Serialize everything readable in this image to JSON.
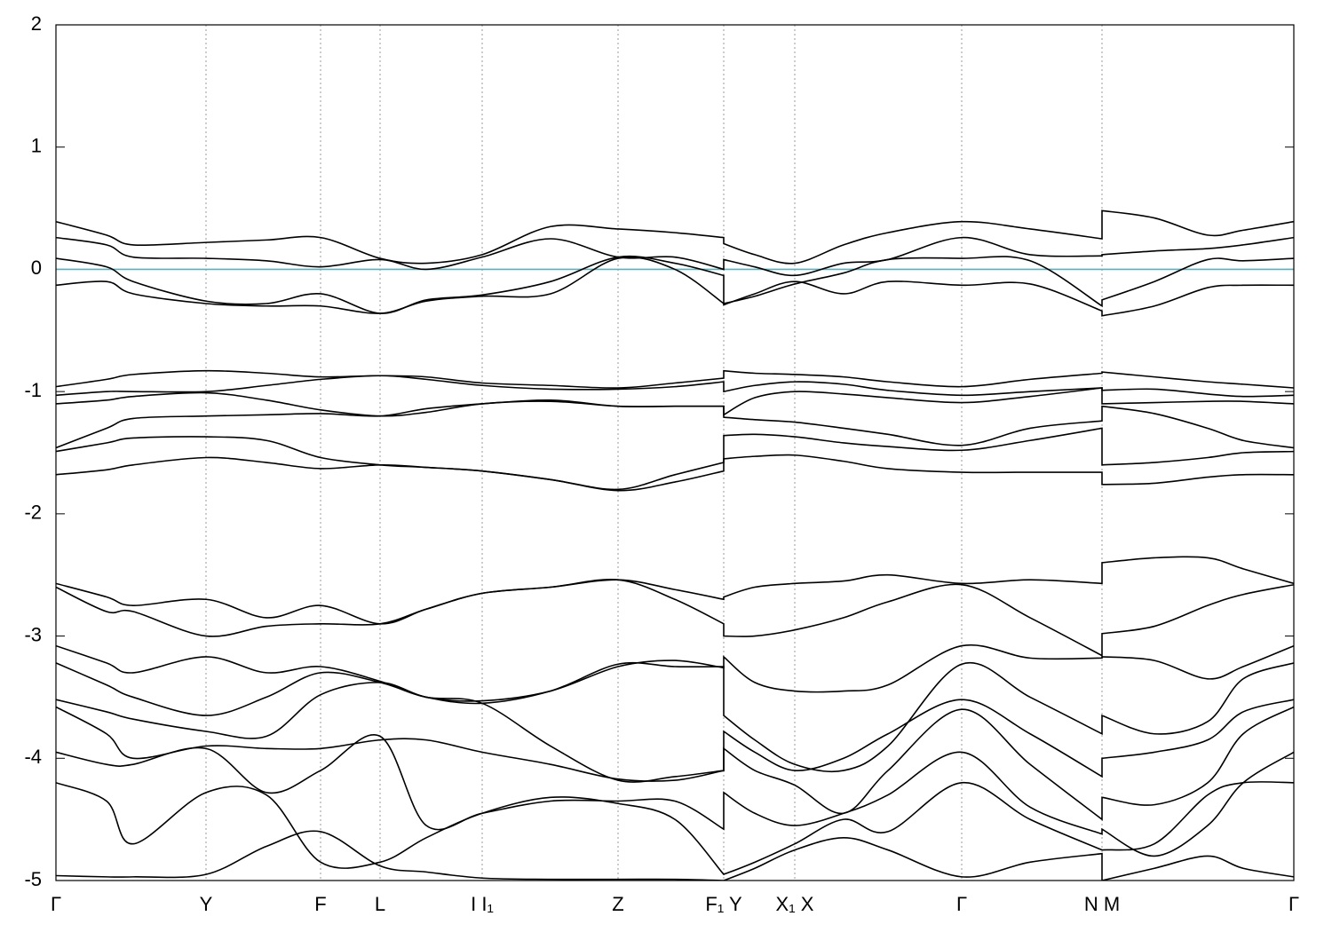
{
  "chart_data": {
    "type": "line",
    "xlim": [
      0,
      1394
    ],
    "ylim": [
      -5,
      2
    ],
    "yticks": [
      -5,
      -4,
      -3,
      -2,
      -1,
      0,
      1,
      2
    ],
    "xticks": [
      {
        "value": 0,
        "label": "Γ"
      },
      {
        "value": 169,
        "label": "Y"
      },
      {
        "value": 298,
        "label": "F"
      },
      {
        "value": 365,
        "label": "L"
      },
      {
        "value": 480,
        "label": "I   I₁"
      },
      {
        "value": 633,
        "label": "Z"
      },
      {
        "value": 752,
        "label": "F₁ Y"
      },
      {
        "value": 832,
        "label": "X₁ X"
      },
      {
        "value": 1020,
        "label": "Γ"
      },
      {
        "value": 1178,
        "label": "N M"
      },
      {
        "value": 1394,
        "label": "Γ"
      }
    ],
    "grid": true,
    "fermi_level": 0,
    "fermi_color": "#4ab6c8",
    "x": [
      0,
      57,
      87,
      169,
      237,
      298,
      365,
      417,
      480,
      557,
      633,
      697,
      752,
      752,
      787,
      832,
      887,
      937,
      1020,
      1097,
      1178,
      1178,
      1237,
      1297,
      1337,
      1394
    ],
    "series": [
      {
        "color": "#000000",
        "values": [
          0.39,
          0.28,
          0.2,
          0.22,
          0.24,
          0.26,
          0.09,
          0.05,
          0.12,
          0.35,
          0.33,
          0.3,
          0.26,
          0.21,
          0.12,
          0.05,
          0.2,
          0.3,
          0.39,
          0.33,
          0.25,
          0.48,
          0.42,
          0.28,
          0.32,
          0.39
        ]
      },
      {
        "color": "#000000",
        "values": [
          0.26,
          0.2,
          0.1,
          0.09,
          0.07,
          0.02,
          0.08,
          0.0,
          0.1,
          0.25,
          0.1,
          0.1,
          0.0,
          0.08,
          0.02,
          -0.05,
          0.05,
          0.08,
          0.26,
          0.12,
          0.11,
          0.12,
          0.15,
          0.17,
          0.2,
          0.26
        ]
      },
      {
        "color": "#000000",
        "values": [
          0.09,
          0.02,
          -0.1,
          -0.26,
          -0.28,
          -0.2,
          -0.36,
          -0.25,
          -0.21,
          -0.1,
          0.1,
          0.05,
          -0.05,
          -0.28,
          -0.22,
          -0.12,
          -0.03,
          0.08,
          0.09,
          0.07,
          -0.3,
          -0.25,
          -0.1,
          0.08,
          0.07,
          0.09
        ]
      },
      {
        "color": "#000000",
        "values": [
          -0.13,
          -0.1,
          -0.2,
          -0.28,
          -0.3,
          -0.3,
          -0.36,
          -0.26,
          -0.22,
          -0.2,
          0.09,
          0.0,
          -0.28,
          -0.29,
          -0.2,
          -0.1,
          -0.2,
          -0.1,
          -0.13,
          -0.12,
          -0.34,
          -0.38,
          -0.3,
          -0.15,
          -0.13,
          -0.13
        ]
      },
      {
        "color": "#000000",
        "values": [
          -0.96,
          -0.9,
          -0.86,
          -0.83,
          -0.85,
          -0.88,
          -0.87,
          -0.88,
          -0.93,
          -0.95,
          -0.97,
          -0.93,
          -0.89,
          -0.83,
          -0.85,
          -0.86,
          -0.88,
          -0.92,
          -0.96,
          -0.9,
          -0.85,
          -0.84,
          -0.88,
          -0.92,
          -0.94,
          -0.97
        ]
      },
      {
        "color": "#000000",
        "values": [
          -1.03,
          -1.0,
          -1.0,
          -1.0,
          -0.95,
          -0.9,
          -0.87,
          -0.9,
          -0.95,
          -0.98,
          -0.98,
          -0.96,
          -0.92,
          -1.0,
          -0.95,
          -0.92,
          -0.94,
          -0.99,
          -1.03,
          -1.0,
          -0.97,
          -0.99,
          -0.98,
          -1.02,
          -1.04,
          -1.03
        ]
      },
      {
        "color": "#000000",
        "values": [
          -1.1,
          -1.07,
          -1.04,
          -1.01,
          -1.07,
          -1.15,
          -1.2,
          -1.17,
          -1.1,
          -1.08,
          -1.12,
          -1.12,
          -1.12,
          -1.19,
          -1.05,
          -1.0,
          -1.02,
          -1.05,
          -1.09,
          -1.04,
          -0.97,
          -1.1,
          -1.09,
          -1.08,
          -1.08,
          -1.1
        ]
      },
      {
        "color": "#000000",
        "values": [
          -1.46,
          -1.3,
          -1.22,
          -1.2,
          -1.19,
          -1.18,
          -1.2,
          -1.14,
          -1.1,
          -1.07,
          -1.12,
          -1.12,
          -1.12,
          -1.21,
          -1.23,
          -1.25,
          -1.3,
          -1.35,
          -1.44,
          -1.3,
          -1.24,
          -1.12,
          -1.18,
          -1.3,
          -1.4,
          -1.46
        ]
      },
      {
        "color": "#000000",
        "values": [
          -1.49,
          -1.42,
          -1.38,
          -1.37,
          -1.4,
          -1.54,
          -1.6,
          -1.62,
          -1.65,
          -1.72,
          -1.8,
          -1.68,
          -1.58,
          -1.36,
          -1.35,
          -1.37,
          -1.42,
          -1.45,
          -1.48,
          -1.4,
          -1.3,
          -1.6,
          -1.58,
          -1.54,
          -1.5,
          -1.49
        ]
      },
      {
        "color": "#000000",
        "values": [
          -1.68,
          -1.64,
          -1.6,
          -1.54,
          -1.58,
          -1.63,
          -1.6,
          -1.62,
          -1.65,
          -1.72,
          -1.81,
          -1.74,
          -1.65,
          -1.55,
          -1.53,
          -1.52,
          -1.57,
          -1.63,
          -1.66,
          -1.66,
          -1.66,
          -1.76,
          -1.75,
          -1.7,
          -1.68,
          -1.68
        ]
      },
      {
        "color": "#000000",
        "values": [
          -2.57,
          -2.68,
          -2.75,
          -2.7,
          -2.85,
          -2.75,
          -2.9,
          -2.78,
          -2.65,
          -2.6,
          -2.54,
          -2.62,
          -2.7,
          -2.68,
          -2.6,
          -2.57,
          -2.55,
          -2.5,
          -2.57,
          -2.54,
          -2.57,
          -2.4,
          -2.36,
          -2.36,
          -2.45,
          -2.57
        ]
      },
      {
        "color": "#000000",
        "values": [
          -2.6,
          -2.8,
          -2.8,
          -3.0,
          -2.92,
          -2.9,
          -2.9,
          -2.78,
          -2.65,
          -2.6,
          -2.54,
          -2.7,
          -2.9,
          -3.0,
          -3.0,
          -2.95,
          -2.85,
          -2.72,
          -2.58,
          -2.85,
          -3.16,
          -2.98,
          -2.92,
          -2.75,
          -2.66,
          -2.58
        ]
      },
      {
        "color": "#000000",
        "values": [
          -3.08,
          -3.22,
          -3.3,
          -3.17,
          -3.3,
          -3.25,
          -3.37,
          -3.5,
          -3.53,
          -3.45,
          -3.25,
          -3.2,
          -3.26,
          -3.17,
          -3.38,
          -3.45,
          -3.45,
          -3.4,
          -3.08,
          -3.18,
          -3.18,
          -3.17,
          -3.2,
          -3.35,
          -3.25,
          -3.08
        ]
      },
      {
        "color": "#000000",
        "values": [
          -3.22,
          -3.4,
          -3.5,
          -3.65,
          -3.5,
          -3.3,
          -3.38,
          -3.5,
          -3.55,
          -3.45,
          -3.23,
          -3.25,
          -3.25,
          -3.65,
          -3.85,
          -4.05,
          -4.1,
          -3.9,
          -3.23,
          -3.5,
          -3.8,
          -3.65,
          -3.8,
          -3.7,
          -3.35,
          -3.22
        ]
      },
      {
        "color": "#000000",
        "values": [
          -3.52,
          -3.62,
          -3.68,
          -3.78,
          -3.82,
          -3.48,
          -3.38,
          -3.5,
          -3.55,
          -3.9,
          -4.18,
          -4.15,
          -4.1,
          -3.78,
          -3.95,
          -4.1,
          -4.0,
          -3.8,
          -3.52,
          -3.8,
          -4.15,
          -4.0,
          -3.95,
          -3.85,
          -3.62,
          -3.52
        ]
      },
      {
        "color": "#000000",
        "values": [
          -3.58,
          -3.8,
          -4.0,
          -3.9,
          -3.92,
          -3.92,
          -3.85,
          -3.85,
          -3.95,
          -4.05,
          -4.17,
          -4.18,
          -4.1,
          -3.92,
          -4.1,
          -4.22,
          -4.45,
          -4.1,
          -3.6,
          -4.05,
          -4.5,
          -4.32,
          -4.38,
          -4.2,
          -3.8,
          -3.58
        ]
      },
      {
        "color": "#000000",
        "values": [
          -3.95,
          -4.05,
          -4.05,
          -3.92,
          -4.28,
          -4.1,
          -3.82,
          -4.55,
          -4.45,
          -4.35,
          -4.35,
          -4.35,
          -4.58,
          -4.28,
          -4.45,
          -4.55,
          -4.45,
          -4.3,
          -3.95,
          -4.4,
          -4.62,
          -4.58,
          -4.8,
          -4.55,
          -4.2,
          -3.95
        ]
      },
      {
        "color": "#000000",
        "values": [
          -4.2,
          -4.35,
          -4.7,
          -4.28,
          -4.3,
          -4.85,
          -4.85,
          -4.65,
          -4.45,
          -4.32,
          -4.37,
          -4.5,
          -4.95,
          -4.95,
          -4.85,
          -4.7,
          -4.5,
          -4.6,
          -4.2,
          -4.5,
          -4.75,
          -4.75,
          -4.7,
          -4.3,
          -4.2,
          -4.2
        ]
      },
      {
        "color": "#000000",
        "values": [
          -4.96,
          -4.97,
          -4.97,
          -4.95,
          -4.72,
          -4.6,
          -4.88,
          -4.93,
          -4.98,
          -4.99,
          -4.99,
          -4.99,
          -5.0,
          -5.0,
          -4.9,
          -4.75,
          -4.65,
          -4.75,
          -4.97,
          -4.85,
          -4.78,
          -5.0,
          -4.9,
          -4.8,
          -4.9,
          -4.97
        ]
      }
    ]
  }
}
